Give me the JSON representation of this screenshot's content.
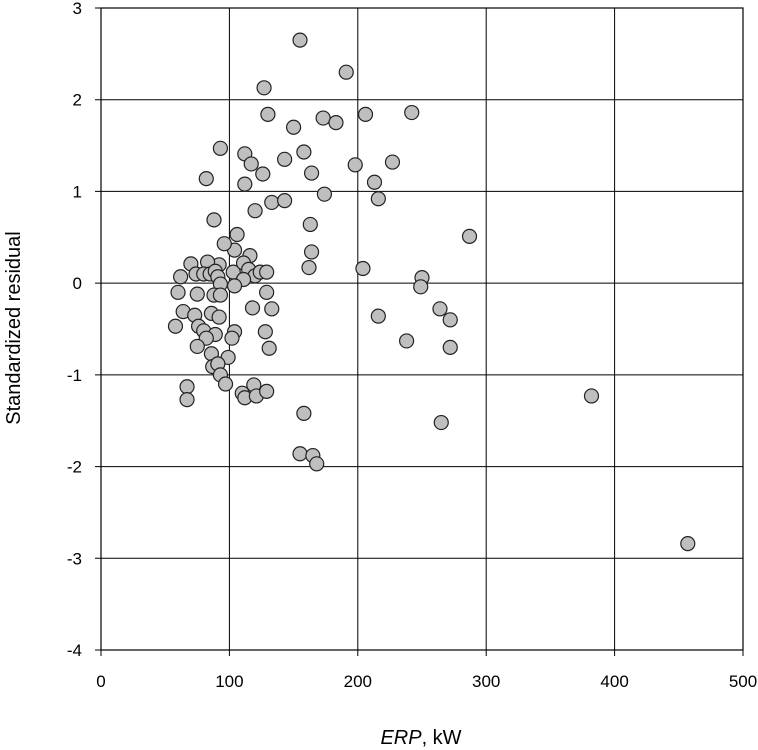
{
  "chart_data": {
    "type": "scatter",
    "title": "",
    "xlabel": {
      "italic": "ERP",
      "rest": ", kW"
    },
    "ylabel": "Standardized residual",
    "xlim": [
      0,
      500
    ],
    "ylim": [
      -4,
      3
    ],
    "xticks": [
      0,
      100,
      200,
      300,
      400,
      500
    ],
    "yticks": [
      3,
      2,
      1,
      0,
      -1,
      -2,
      -3,
      -4
    ],
    "xtick_labels": [
      "0",
      "100",
      "200",
      "300",
      "400",
      "500"
    ],
    "ytick_labels": [
      "3",
      "2",
      "1",
      "0",
      "-1",
      "-2",
      "-3",
      "-4"
    ],
    "grid": true,
    "marker_color": "#bfbfbf",
    "points": [
      [
        155,
        2.65
      ],
      [
        191,
        2.3
      ],
      [
        127,
        2.13
      ],
      [
        130,
        1.84
      ],
      [
        173,
        1.8
      ],
      [
        183,
        1.75
      ],
      [
        150,
        1.7
      ],
      [
        206,
        1.84
      ],
      [
        242,
        1.86
      ],
      [
        93,
        1.47
      ],
      [
        112,
        1.41
      ],
      [
        117,
        1.3
      ],
      [
        143,
        1.35
      ],
      [
        158,
        1.43
      ],
      [
        198,
        1.29
      ],
      [
        227,
        1.32
      ],
      [
        126,
        1.19
      ],
      [
        164,
        1.2
      ],
      [
        82,
        1.14
      ],
      [
        112,
        1.08
      ],
      [
        213,
        1.1
      ],
      [
        174,
        0.97
      ],
      [
        216,
        0.92
      ],
      [
        133,
        0.88
      ],
      [
        143,
        0.9
      ],
      [
        120,
        0.79
      ],
      [
        163,
        0.64
      ],
      [
        88,
        0.69
      ],
      [
        287,
        0.51
      ],
      [
        106,
        0.53
      ],
      [
        104,
        0.36
      ],
      [
        96,
        0.43
      ],
      [
        116,
        0.3
      ],
      [
        164,
        0.34
      ],
      [
        162,
        0.17
      ],
      [
        204,
        0.16
      ],
      [
        70,
        0.21
      ],
      [
        92,
        0.2
      ],
      [
        103,
        0.12
      ],
      [
        111,
        0.22
      ],
      [
        115,
        0.15
      ],
      [
        120,
        0.08
      ],
      [
        124,
        0.12
      ],
      [
        129,
        0.12
      ],
      [
        83,
        0.23
      ],
      [
        62,
        0.07
      ],
      [
        74,
        0.1
      ],
      [
        80,
        0.1
      ],
      [
        85,
        0.1
      ],
      [
        89,
        0.13
      ],
      [
        91,
        0.07
      ],
      [
        111,
        0.04
      ],
      [
        250,
        0.06
      ],
      [
        93,
        -0.01
      ],
      [
        104,
        -0.03
      ],
      [
        249,
        -0.04
      ],
      [
        60,
        -0.1
      ],
      [
        75,
        -0.12
      ],
      [
        88,
        -0.13
      ],
      [
        93,
        -0.13
      ],
      [
        129,
        -0.1
      ],
      [
        118,
        -0.27
      ],
      [
        133,
        -0.28
      ],
      [
        264,
        -0.28
      ],
      [
        64,
        -0.31
      ],
      [
        73,
        -0.35
      ],
      [
        86,
        -0.33
      ],
      [
        92,
        -0.37
      ],
      [
        216,
        -0.36
      ],
      [
        272,
        -0.4
      ],
      [
        58,
        -0.47
      ],
      [
        76,
        -0.47
      ],
      [
        80,
        -0.52
      ],
      [
        89,
        -0.56
      ],
      [
        104,
        -0.53
      ],
      [
        128,
        -0.53
      ],
      [
        82,
        -0.6
      ],
      [
        102,
        -0.6
      ],
      [
        238,
        -0.63
      ],
      [
        75,
        -0.69
      ],
      [
        131,
        -0.71
      ],
      [
        272,
        -0.7
      ],
      [
        86,
        -0.77
      ],
      [
        99,
        -0.81
      ],
      [
        87,
        -0.91
      ],
      [
        91,
        -0.88
      ],
      [
        93,
        -1.0
      ],
      [
        97,
        -1.1
      ],
      [
        67,
        -1.13
      ],
      [
        119,
        -1.11
      ],
      [
        110,
        -1.2
      ],
      [
        112,
        -1.25
      ],
      [
        121,
        -1.23
      ],
      [
        129,
        -1.18
      ],
      [
        67,
        -1.27
      ],
      [
        382,
        -1.23
      ],
      [
        158,
        -1.42
      ],
      [
        265,
        -1.52
      ],
      [
        155,
        -1.86
      ],
      [
        165,
        -1.88
      ],
      [
        168,
        -1.97
      ],
      [
        457,
        -2.84
      ]
    ]
  }
}
